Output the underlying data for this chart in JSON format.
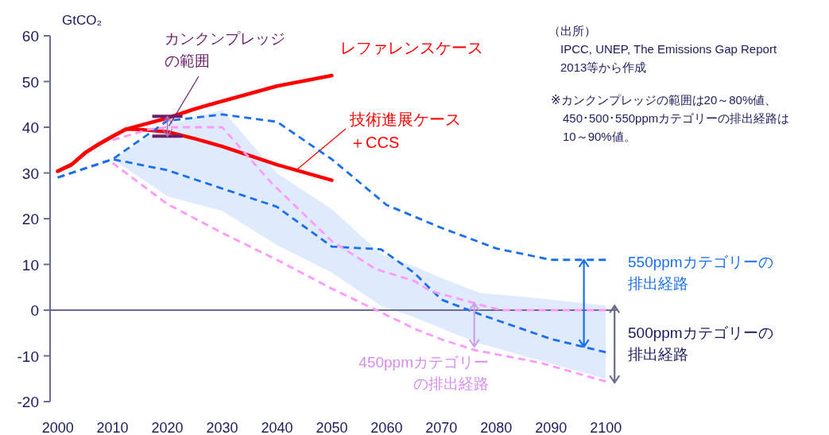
{
  "chart_data": {
    "type": "line",
    "ylabel": "GtCO₂",
    "xlim": [
      1998.6,
      2102
    ],
    "ylim": [
      -20,
      60
    ],
    "xticks": [
      2000,
      2010,
      2020,
      2030,
      2040,
      2050,
      2060,
      2070,
      2080,
      2090,
      2100
    ],
    "yticks": [
      -20,
      -10,
      0,
      10,
      20,
      30,
      40,
      50,
      60
    ],
    "grid": false,
    "ref_lines": [
      {
        "axis": "y",
        "value": 0,
        "color": "#6b6b9a"
      }
    ],
    "annotations": [
      "（出所）\nIPCC, UNEP, The Emissions Gap Report\n2013等から作成",
      "※カンクンプレッジの範囲は20～80%値、\n450･500･550ppmカテゴリーの排出経路は\n10～90%値。",
      {
        "text": "カンクンプレッジの範囲",
        "x": 2020,
        "y": 40.2
      },
      {
        "text": "450ppmカテゴリーの排出経路",
        "x": 2076,
        "y": -8
      },
      {
        "text": "550ppmカテゴリーの排出経路",
        "x": 2096,
        "y": 11
      },
      {
        "text": "500ppmカテゴリーの排出経路",
        "x": 2100,
        "y": -15
      }
    ],
    "series": [
      {
        "name": "レファレンスケース",
        "line_style": "solid",
        "color": "#ff0000",
        "x": [
          2000,
          2002.5,
          2005,
          2007.5,
          2010,
          2012.5,
          2020,
          2025,
          2030,
          2040,
          2050
        ],
        "values": [
          30.4,
          31.8,
          34.4,
          36.3,
          38,
          39.6,
          42,
          44,
          45.7,
          49,
          51.3
        ]
      },
      {
        "name": "技術進展ケース＋CCS",
        "line_style": "solid",
        "color": "#ff0000",
        "x": [
          2000,
          2002.5,
          2005,
          2007.5,
          2010,
          2012.5,
          2015,
          2020,
          2025,
          2030,
          2040,
          2050
        ],
        "values": [
          30.4,
          31.8,
          34.4,
          36.3,
          38,
          39.6,
          39.5,
          39,
          37.5,
          35.8,
          31.8,
          28.4
        ]
      },
      {
        "line_style": "dashed",
        "color": "#1a6ff0",
        "x": [
          2000,
          2010,
          2020,
          2030,
          2040,
          2050,
          2060,
          2070,
          2080,
          2090,
          2100
        ],
        "values": [
          29,
          33,
          41.4,
          42.8,
          41.2,
          33,
          23,
          18,
          13.5,
          11,
          11
        ]
      },
      {
        "line_style": "dashed",
        "color": "#1a6ff0",
        "x": [
          2000,
          2010,
          2020,
          2030,
          2040,
          2050,
          2059,
          2065,
          2070,
          2077,
          2090,
          2100
        ],
        "values": [
          29,
          33,
          30.6,
          26.6,
          22.6,
          13.9,
          13.3,
          8.2,
          2.3,
          -0.9,
          -6.3,
          -9.2
        ],
        "upper": [
          null,
          33,
          40.5,
          43.8,
          29.9,
          22.1,
          12.2,
          9.6,
          7,
          3.8,
          2.3,
          1
        ],
        "lower": [
          null,
          33,
          24.9,
          21.7,
          14.2,
          8.2,
          0.9,
          -1.5,
          -4,
          -7.3,
          -11.7,
          -15
        ]
      },
      {
        "line_style": "dashed",
        "color": "#ff99ff",
        "x": [
          2010,
          2016.5,
          2020,
          2030,
          2039,
          2050,
          2058,
          2065,
          2068,
          2078.5,
          2081,
          2100
        ],
        "values": [
          37.2,
          39.5,
          40,
          40,
          27.8,
          15.1,
          9,
          6.4,
          4.2,
          0.7,
          0,
          0
        ]
      },
      {
        "line_style": "dashed",
        "color": "#ff99ff",
        "x": [
          2010,
          2020,
          2030,
          2040,
          2050,
          2059,
          2065,
          2070,
          2076,
          2088,
          2100
        ],
        "values": [
          32.2,
          23.2,
          16.9,
          11,
          4.7,
          -0.5,
          -4,
          -6.4,
          -8.7,
          -11.5,
          -15.6
        ]
      }
    ]
  }
}
